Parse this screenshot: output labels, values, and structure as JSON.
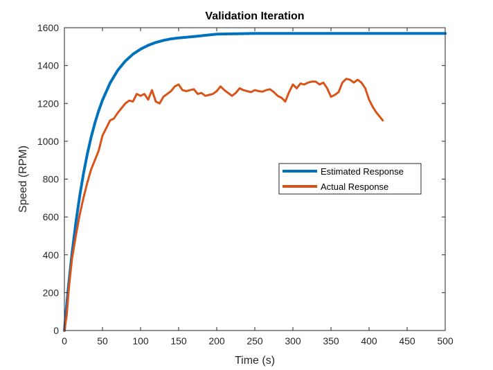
{
  "chart_data": {
    "type": "line",
    "title": "Validation Iteration",
    "xlabel": "Time (s)",
    "ylabel": "Speed (RPM)",
    "xlim": [
      0,
      500
    ],
    "ylim": [
      0,
      1600
    ],
    "xticks": [
      0,
      50,
      100,
      150,
      200,
      250,
      300,
      350,
      400,
      450,
      500
    ],
    "yticks": [
      0,
      200,
      400,
      600,
      800,
      1000,
      1200,
      1400,
      1600
    ],
    "grid": false,
    "legend_position": "right-middle",
    "series": [
      {
        "name": "Estimated Response",
        "color": "#0072bd",
        "x": [
          0,
          5,
          10,
          15,
          20,
          25,
          30,
          35,
          40,
          45,
          50,
          60,
          70,
          80,
          90,
          100,
          110,
          120,
          130,
          140,
          150,
          170,
          200,
          250,
          300,
          350,
          400,
          450,
          500
        ],
        "y": [
          0,
          219,
          407,
          569,
          708,
          828,
          931,
          1020,
          1096,
          1161,
          1217,
          1308,
          1375,
          1424,
          1460,
          1487,
          1507,
          1522,
          1533,
          1541,
          1546,
          1553,
          1566,
          1570,
          1570,
          1570,
          1570,
          1570,
          1570
        ]
      },
      {
        "name": "Actual Response",
        "color": "#d95319",
        "x": [
          0,
          3,
          6,
          10,
          15,
          20,
          25,
          30,
          35,
          40,
          45,
          50,
          55,
          60,
          65,
          70,
          75,
          80,
          85,
          90,
          95,
          100,
          105,
          110,
          115,
          120,
          125,
          130,
          135,
          140,
          145,
          150,
          155,
          160,
          165,
          170,
          175,
          180,
          185,
          190,
          195,
          200,
          205,
          210,
          215,
          220,
          225,
          230,
          235,
          240,
          245,
          250,
          255,
          260,
          265,
          270,
          275,
          280,
          285,
          290,
          295,
          300,
          305,
          310,
          315,
          320,
          325,
          330,
          335,
          340,
          345,
          350,
          355,
          360,
          365,
          370,
          375,
          380,
          385,
          390,
          395,
          400,
          405,
          410,
          415,
          418
        ],
        "y": [
          0,
          80,
          230,
          380,
          500,
          610,
          700,
          780,
          850,
          900,
          950,
          1030,
          1070,
          1110,
          1120,
          1150,
          1175,
          1200,
          1215,
          1210,
          1250,
          1240,
          1250,
          1220,
          1270,
          1210,
          1200,
          1235,
          1250,
          1265,
          1290,
          1300,
          1270,
          1265,
          1270,
          1275,
          1250,
          1255,
          1240,
          1245,
          1250,
          1265,
          1290,
          1270,
          1255,
          1240,
          1255,
          1280,
          1270,
          1265,
          1260,
          1270,
          1265,
          1262,
          1270,
          1275,
          1260,
          1240,
          1230,
          1210,
          1260,
          1300,
          1280,
          1305,
          1300,
          1310,
          1315,
          1315,
          1300,
          1310,
          1280,
          1235,
          1245,
          1260,
          1310,
          1330,
          1325,
          1310,
          1325,
          1310,
          1280,
          1220,
          1180,
          1150,
          1125,
          1110
        ]
      }
    ]
  }
}
